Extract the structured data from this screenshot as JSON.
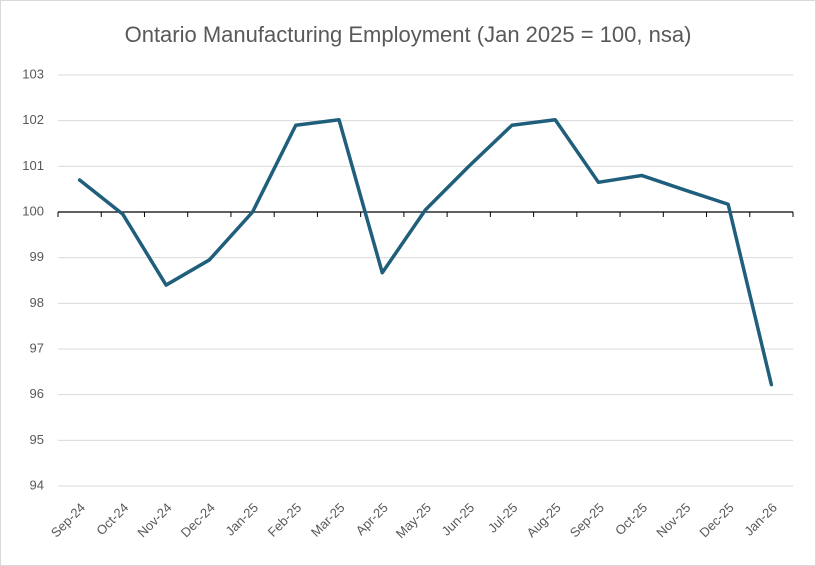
{
  "chart_data": {
    "type": "line",
    "title": "Ontario Manufacturing Employment (Jan 2025 = 100, nsa)",
    "categories": [
      "Sep-24",
      "Oct-24",
      "Nov-24",
      "Dec-24",
      "Jan-25",
      "Feb-25",
      "Mar-25",
      "Apr-25",
      "May-25",
      "Jun-25",
      "Jul-25",
      "Aug-25",
      "Sep-25",
      "Oct-25",
      "Nov-25",
      "Dec-25",
      "Jan-26"
    ],
    "series": [
      {
        "name": "Ontario Manufacturing Employment",
        "color": "#1f5f7c",
        "values": [
          100.7,
          99.95,
          98.4,
          98.95,
          100.0,
          101.9,
          102.02,
          98.67,
          100.05,
          101.0,
          101.9,
          102.02,
          100.65,
          100.8,
          100.48,
          100.17,
          96.22
        ]
      }
    ],
    "ylim": [
      94,
      103
    ],
    "yticks": [
      94,
      95,
      96,
      97,
      98,
      99,
      100,
      101,
      102,
      103
    ],
    "grid": true,
    "baseline": 100
  }
}
